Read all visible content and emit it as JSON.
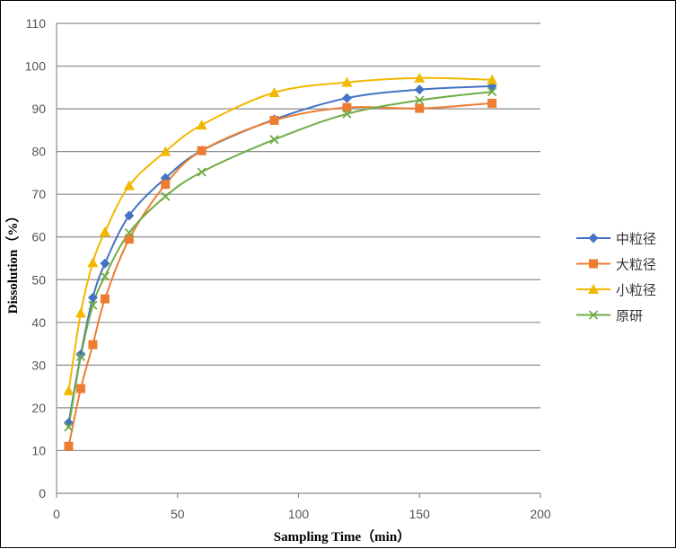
{
  "chart_data": {
    "type": "line",
    "xlabel": "Sampling Time（min）",
    "ylabel": "Dissolution（%）",
    "xlim": [
      0,
      200
    ],
    "ylim": [
      0,
      110
    ],
    "x_ticks": [
      "0",
      "50",
      "100",
      "150",
      "200"
    ],
    "y_ticks": [
      "0",
      "10",
      "20",
      "30",
      "40",
      "50",
      "60",
      "70",
      "80",
      "90",
      "100",
      "110"
    ],
    "grid": "horizontal",
    "legend_position": "right",
    "x": [
      5,
      10,
      15,
      20,
      30,
      45,
      60,
      90,
      120,
      150,
      180
    ],
    "series": [
      {
        "name": "中粒径",
        "color": "#4472C4",
        "marker": "diamond",
        "values": [
          16.5,
          32.5,
          45.8,
          53.8,
          65,
          73.8,
          80.2,
          87.5,
          92.5,
          94.5,
          95.3
        ]
      },
      {
        "name": "大粒径",
        "color": "#ED7D31",
        "marker": "square",
        "values": [
          11,
          24.5,
          34.8,
          45.5,
          59.5,
          72.3,
          80.2,
          87.3,
          90.3,
          90.1,
          91.3
        ]
      },
      {
        "name": "小粒径",
        "color": "#F2B800",
        "marker": "triangle",
        "values": [
          24,
          42.2,
          54,
          61.2,
          72,
          80,
          86.2,
          93.8,
          96.2,
          97.2,
          96.8
        ]
      },
      {
        "name": "原研",
        "color": "#70AD47",
        "marker": "x",
        "values": [
          15.5,
          32,
          44,
          50.8,
          61,
          69.5,
          75.2,
          82.8,
          88.8,
          92,
          94
        ]
      }
    ]
  }
}
